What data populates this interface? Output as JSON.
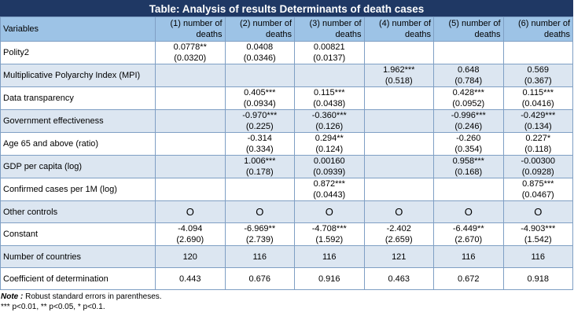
{
  "title": "Table: Analysis of results  Determinants of death cases",
  "header": {
    "variables": "Variables",
    "columns": [
      [
        "(1) number of",
        "deaths"
      ],
      [
        "(2) number of",
        "deaths"
      ],
      [
        "(3) number of",
        "deaths"
      ],
      [
        "(4) number of",
        "deaths"
      ],
      [
        "(5) number of",
        "deaths"
      ],
      [
        "(6) number of",
        "deaths"
      ]
    ]
  },
  "rows": [
    {
      "label": "Polity2",
      "cells": [
        [
          "0.0778**",
          "(0.0320)"
        ],
        [
          "0.0408",
          "(0.0346)"
        ],
        [
          "0.00821",
          "(0.0137)"
        ],
        [
          "",
          ""
        ],
        [
          "",
          ""
        ],
        [
          "",
          ""
        ]
      ]
    },
    {
      "label": "Multiplicative Polyarchy Index (MPI)",
      "cells": [
        [
          "",
          ""
        ],
        [
          "",
          ""
        ],
        [
          "",
          ""
        ],
        [
          "1.962***",
          "(0.518)"
        ],
        [
          "0.648",
          "(0.784)"
        ],
        [
          "0.569",
          "(0.367)"
        ]
      ]
    },
    {
      "label": "Data transparency",
      "cells": [
        [
          "",
          ""
        ],
        [
          "0.405***",
          "(0.0934)"
        ],
        [
          "0.115***",
          "(0.0438)"
        ],
        [
          "",
          ""
        ],
        [
          "0.428***",
          "(0.0952)"
        ],
        [
          "0.115***",
          "(0.0416)"
        ]
      ]
    },
    {
      "label": "Government effectiveness",
      "cells": [
        [
          "",
          ""
        ],
        [
          "-0.970***",
          "(0.225)"
        ],
        [
          "-0.360***",
          "(0.126)"
        ],
        [
          "",
          ""
        ],
        [
          "-0.996***",
          "(0.246)"
        ],
        [
          "-0.429***",
          "(0.134)"
        ]
      ]
    },
    {
      "label": "Age 65 and above (ratio)",
      "cells": [
        [
          "",
          ""
        ],
        [
          "-0.314",
          "(0.334)"
        ],
        [
          "0.294**",
          "(0.124)"
        ],
        [
          "",
          ""
        ],
        [
          "-0.260",
          "(0.354)"
        ],
        [
          "0.227*",
          "(0.118)"
        ]
      ]
    },
    {
      "label": "GDP per capita (log)",
      "cells": [
        [
          "",
          ""
        ],
        [
          "1.006***",
          "(0.178)"
        ],
        [
          "0.00160",
          "(0.0939)"
        ],
        [
          "",
          ""
        ],
        [
          "0.958***",
          "(0.168)"
        ],
        [
          "-0.00300",
          "(0.0928)"
        ]
      ]
    },
    {
      "label": "Confirmed cases per 1M (log)",
      "cells": [
        [
          "",
          ""
        ],
        [
          "",
          ""
        ],
        [
          "0.872***",
          "(0.0443)"
        ],
        [
          "",
          ""
        ],
        [
          "",
          ""
        ],
        [
          "0.875***",
          "(0.0467)"
        ]
      ]
    },
    {
      "label": "Other controls",
      "cells": [
        [
          "O"
        ],
        [
          "O"
        ],
        [
          "O"
        ],
        [
          "O"
        ],
        [
          "O"
        ],
        [
          "O"
        ]
      ]
    },
    {
      "label": "Constant",
      "cells": [
        [
          "-4.094",
          "(2.690)"
        ],
        [
          "-6.969**",
          "(2.739)"
        ],
        [
          "-4.708***",
          "(1.592)"
        ],
        [
          "-2.402",
          "(2.659)"
        ],
        [
          "-6.449**",
          "(2.670)"
        ],
        [
          "-4.903***",
          "(1.542)"
        ]
      ]
    },
    {
      "label": "Number of countries",
      "cells": [
        [
          "120"
        ],
        [
          "116"
        ],
        [
          "116"
        ],
        [
          "121"
        ],
        [
          "116"
        ],
        [
          "116"
        ]
      ]
    },
    {
      "label": "Coefficient of determination",
      "cells": [
        [
          "0.443"
        ],
        [
          "0.676"
        ],
        [
          "0.916"
        ],
        [
          "0.463"
        ],
        [
          "0.672"
        ],
        [
          "0.918"
        ]
      ]
    }
  ],
  "notes": {
    "note_label": "Note :",
    "note_text": " Robust standard errors in parentheses.",
    "significance": "*** p<0.01, ** p<0.05, * p<0.1."
  },
  "colors": {
    "title_bg": "#1f3864",
    "header_bg": "#9dc3e6",
    "band_bg": "#dce6f1"
  }
}
